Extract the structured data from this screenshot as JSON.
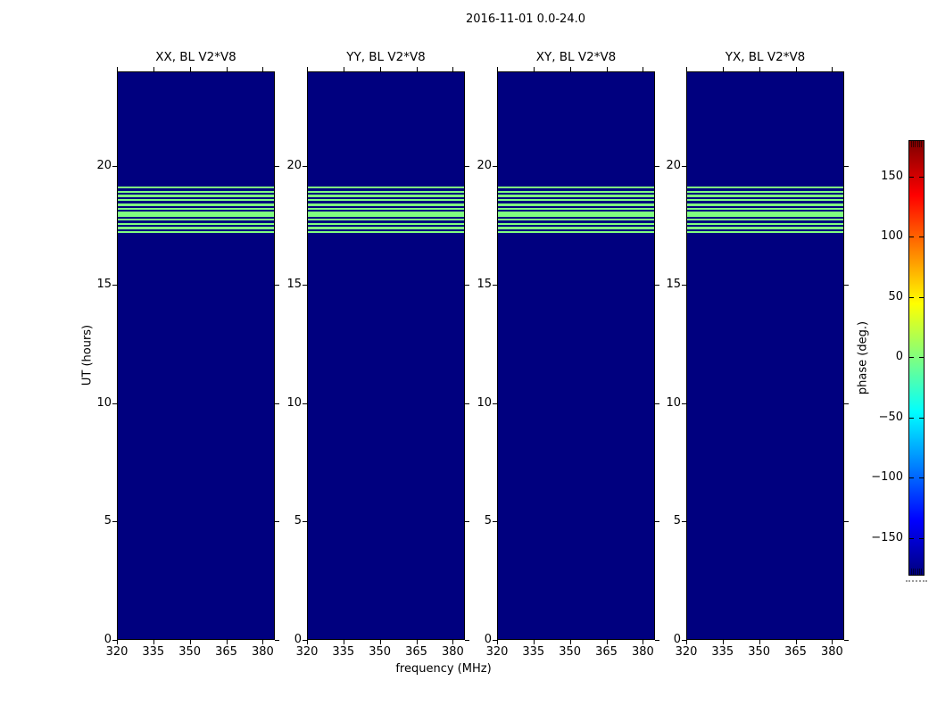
{
  "figure": {
    "title": "2016-11-01 0.0-24.0",
    "xlabel": "frequency (MHz)",
    "ylabel": "UT (hours)",
    "colorbar_label": "phase (deg.)"
  },
  "axes": {
    "y_tick_labels": [
      "0",
      "5",
      "10",
      "15",
      "20"
    ],
    "x_tick_labels": [
      "320",
      "335",
      "350",
      "365",
      "380"
    ],
    "cb_tick_labels": [
      "150",
      "100",
      "50",
      "0",
      "−50",
      "−100",
      "−150"
    ]
  },
  "colors": {
    "phase_background": "#00007F",
    "phase_band": "#80FF80",
    "figure_background": "#FFFFFF",
    "jet_gradient_bottom_to_top": [
      "#00007F",
      "#0000FF",
      "#00FFFF",
      "#FFFF00",
      "#FF0000",
      "#7F0000"
    ]
  },
  "chart_data": {
    "type": "heatmap",
    "title": "2016-11-01 0.0-24.0",
    "xlabel": "frequency (MHz)",
    "ylabel": "UT (hours)",
    "panels": [
      {
        "title": "XX, BL V2*V8"
      },
      {
        "title": "YY, BL V2*V8"
      },
      {
        "title": "XY, BL V2*V8"
      },
      {
        "title": "YX, BL V2*V8"
      }
    ],
    "x_range_mhz": [
      320,
      385
    ],
    "x_ticks": [
      320,
      335,
      350,
      365,
      380
    ],
    "y_range_hours": [
      0,
      24
    ],
    "y_ticks": [
      0,
      5,
      10,
      15,
      20
    ],
    "colorbar": {
      "label": "phase (deg.)",
      "range_deg": [
        -180,
        180
      ],
      "ticks": [
        150,
        100,
        50,
        0,
        -50,
        -100,
        -150
      ],
      "colormap": "jet"
    },
    "background_phase_deg": -180,
    "band_phase_deg": 0,
    "band_uniform_across_frequency": true,
    "band_stripes_ut_hours": [
      [
        19.1,
        19.18
      ],
      [
        18.91,
        18.99
      ],
      [
        18.72,
        18.84
      ],
      [
        18.57,
        18.65
      ],
      [
        18.35,
        18.46
      ],
      [
        18.2,
        18.27
      ],
      [
        17.89,
        18.12
      ],
      [
        17.74,
        17.82
      ],
      [
        17.56,
        17.63
      ],
      [
        17.37,
        17.48
      ],
      [
        17.22,
        17.29
      ]
    ]
  }
}
